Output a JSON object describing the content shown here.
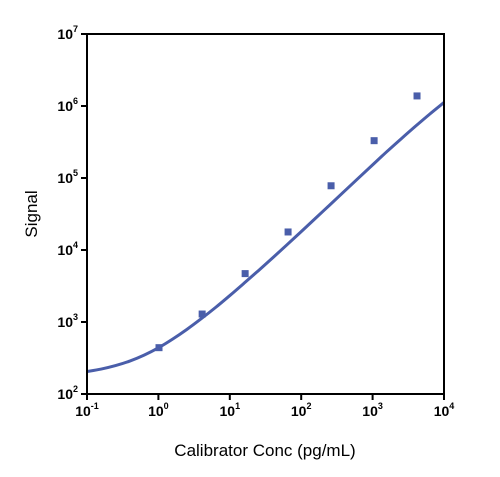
{
  "chart_data": {
    "type": "scatter",
    "title": "",
    "xlabel": "Calibrator Conc (pg/mL)",
    "ylabel": "Signal",
    "xscale": "log",
    "yscale": "log",
    "xlim": [
      0.1,
      10000
    ],
    "ylim": [
      100,
      10000000
    ],
    "x_ticks": [
      {
        "base": "10",
        "exp": "-1"
      },
      {
        "base": "10",
        "exp": "0"
      },
      {
        "base": "10",
        "exp": "1"
      },
      {
        "base": "10",
        "exp": "2"
      },
      {
        "base": "10",
        "exp": "3"
      },
      {
        "base": "10",
        "exp": "4"
      }
    ],
    "y_ticks": [
      {
        "base": "10",
        "exp": "2"
      },
      {
        "base": "10",
        "exp": "3"
      },
      {
        "base": "10",
        "exp": "4"
      },
      {
        "base": "10",
        "exp": "5"
      },
      {
        "base": "10",
        "exp": "6"
      },
      {
        "base": "10",
        "exp": "7"
      }
    ],
    "series": [
      {
        "kind": "points",
        "x": [
          1.02,
          4.1,
          16.4,
          65.5,
          262,
          1050,
          4190
        ],
        "y": [
          440,
          1290,
          4700,
          17800,
          78000,
          330000,
          1380000
        ]
      },
      {
        "kind": "fit-curve",
        "x": [
          0.1,
          0.158,
          0.251,
          0.398,
          0.631,
          1,
          1.58,
          2.51,
          3.98,
          6.31,
          10,
          15.8,
          25.1,
          39.8,
          63.1,
          100,
          158,
          251,
          398,
          631,
          1000,
          1580,
          2510,
          3980,
          6310,
          10000
        ],
        "y": [
          205,
          222,
          248,
          287,
          347,
          438,
          578,
          790,
          1110,
          1590,
          2330,
          3450,
          5160,
          7770,
          11800,
          18000,
          27500,
          42200,
          64800,
          99500,
          152000,
          232000,
          350000,
          523000,
          772000,
          1120000
        ]
      }
    ],
    "colors": {
      "series": "#4a5eaa",
      "axis": "#000000"
    },
    "grid": false,
    "legend": "none"
  }
}
